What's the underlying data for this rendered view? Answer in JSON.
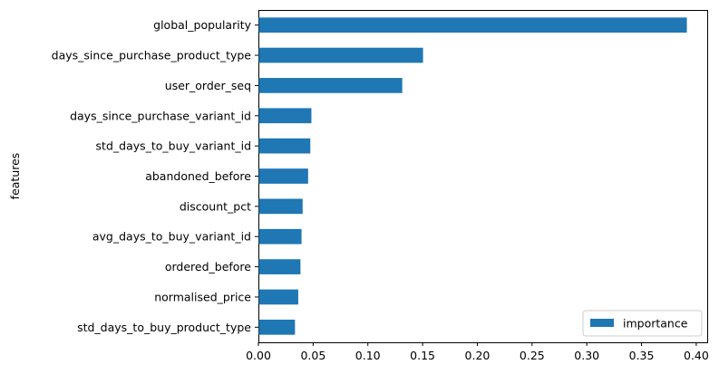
{
  "chart_data": {
    "type": "bar",
    "orientation": "horizontal",
    "categories": [
      "global_popularity",
      "days_since_purchase_product_type",
      "user_order_seq",
      "days_since_purchase_variant_id",
      "std_days_to_buy_variant_id",
      "abandoned_before",
      "discount_pct",
      "avg_days_to_buy_variant_id",
      "ordered_before",
      "normalised_price",
      "std_days_to_buy_product_type"
    ],
    "series": [
      {
        "name": "importance",
        "values": [
          0.391,
          0.15,
          0.131,
          0.048,
          0.047,
          0.045,
          0.04,
          0.039,
          0.038,
          0.036,
          0.033
        ]
      }
    ],
    "xticks": [
      "0.00",
      "0.05",
      "0.10",
      "0.15",
      "0.20",
      "0.25",
      "0.30",
      "0.35",
      "0.40"
    ],
    "xlim": [
      0,
      0.41
    ],
    "title": "",
    "xlabel": "",
    "ylabel": "features",
    "grid": false,
    "legend_position": "lower-right",
    "bar_color": "#1f77b4"
  }
}
